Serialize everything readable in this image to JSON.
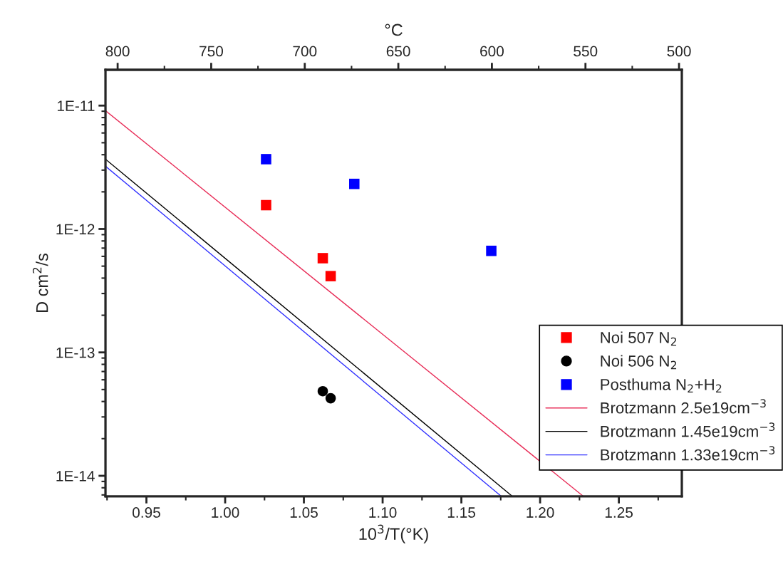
{
  "chart_data": {
    "type": "scatter",
    "xlabel": "10$^{3}$/T(°K)",
    "ylabel": "D cm$^{2}$/s",
    "x2label": "°C",
    "xlim": [
      0.924,
      1.29
    ],
    "xticks": [
      {
        "value": 0.95,
        "label": "0.95"
      },
      {
        "value": 1.0,
        "label": "1.00"
      },
      {
        "value": 1.05,
        "label": "1.05"
      },
      {
        "value": 1.1,
        "label": "1.10"
      },
      {
        "value": 1.15,
        "label": "1.15"
      },
      {
        "value": 1.2,
        "label": "1.20"
      },
      {
        "value": 1.25,
        "label": "1.25"
      }
    ],
    "x2lim": [
      806.5,
      498.5
    ],
    "x2ticks": [
      800,
      750,
      700,
      650,
      600,
      550,
      500
    ],
    "ylim": [
      6.8e-15,
      1.95e-11
    ],
    "yticks": [
      {
        "value": 1e-14,
        "label": "1E-14"
      },
      {
        "value": 1e-13,
        "label": "1E-13"
      },
      {
        "value": 1e-12,
        "label": "1E-12"
      },
      {
        "value": 1e-11,
        "label": "1E-11"
      }
    ],
    "log": "y",
    "grid": false,
    "legend": "bottom right",
    "series": [
      {
        "name": "Noi 507 N$_{2}$",
        "type": "scatter",
        "marker": "square",
        "color": "#ff0000",
        "x": [
          1.026,
          1.062,
          1.067
        ],
        "values": [
          1.56e-12,
          5.8e-13,
          4.15e-13
        ]
      },
      {
        "name": "Noi 506 N$_{2}$",
        "type": "scatter",
        "marker": "circle",
        "color": "#000000",
        "x": [
          1.062,
          1.067
        ],
        "values": [
          4.85e-14,
          4.25e-14
        ]
      },
      {
        "name": "Posthuma N$_{2}$+H$_{2}$",
        "type": "scatter",
        "marker": "square",
        "color": "#0000ff",
        "x": [
          1.026,
          1.082,
          1.169
        ],
        "values": [
          3.68e-12,
          2.32e-12,
          6.65e-13
        ]
      },
      {
        "name": "Brotzmann 2.5e19cm$^{−3}$",
        "type": "line",
        "color": "#e8305a",
        "x": [
          0.924,
          1.2276
        ],
        "values": [
          9.1e-12,
          6.8e-15
        ]
      },
      {
        "name": "Brotzmann 1.45e19cm$^{−3}$",
        "type": "line",
        "color": "#000000",
        "x": [
          0.924,
          1.1825
        ],
        "values": [
          3.68e-12,
          6.8e-15
        ]
      },
      {
        "name": "Brotzmann 1.33e19cm$^{−3}$",
        "type": "line",
        "color": "#3030ff",
        "x": [
          0.924,
          1.1755
        ],
        "values": [
          3.23e-12,
          6.8e-15
        ]
      }
    ]
  }
}
